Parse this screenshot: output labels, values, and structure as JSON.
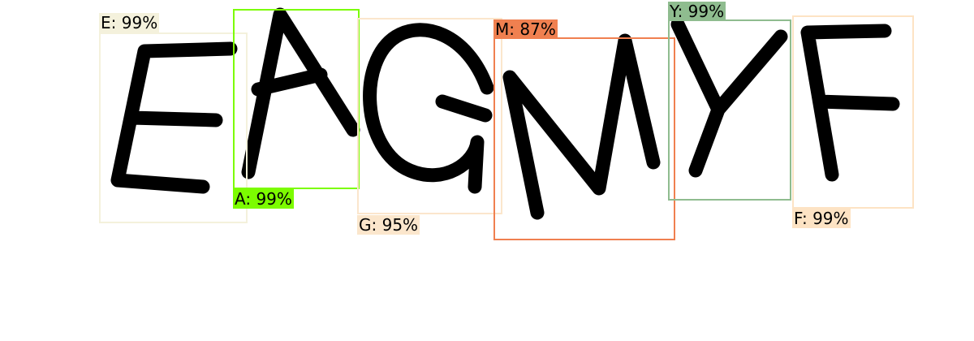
{
  "detections": [
    {
      "label": "E",
      "score": "99%",
      "color": "#f4f1dc"
    },
    {
      "label": "A",
      "score": "99%",
      "color": "#7cfc00"
    },
    {
      "label": "G",
      "score": "95%",
      "color": "#fbe6cc"
    },
    {
      "label": "M",
      "score": "87%",
      "color": "#f08050"
    },
    {
      "label": "Y",
      "score": "99%",
      "color": "#8fbc8f"
    },
    {
      "label": "F",
      "score": "99%",
      "color": "#fde3c4"
    }
  ]
}
